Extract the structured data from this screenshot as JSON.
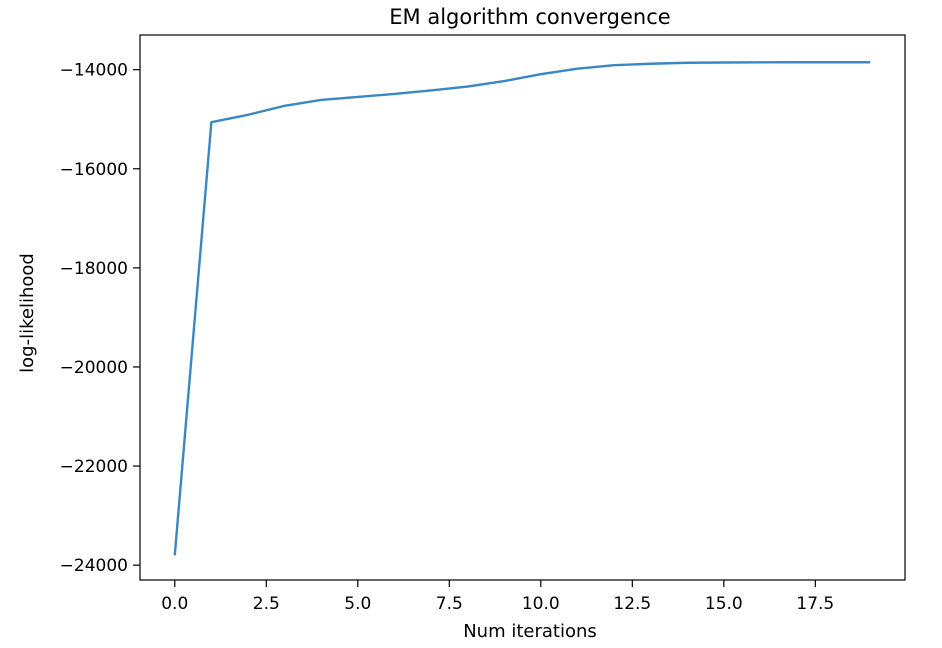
{
  "chart_data": {
    "type": "line",
    "title": "EM algorithm convergence",
    "xlabel": "Num iterations",
    "ylabel": "log-likelihood",
    "xlim": [
      -0.95,
      19.95
    ],
    "ylim": [
      -24300,
      -13300
    ],
    "x_ticks": [
      0.0,
      2.5,
      5.0,
      7.5,
      10.0,
      12.5,
      15.0,
      17.5
    ],
    "x_tick_labels": [
      "0.0",
      "2.5",
      "5.0",
      "7.5",
      "10.0",
      "12.5",
      "15.0",
      "17.5"
    ],
    "y_ticks": [
      -24000,
      -22000,
      -20000,
      -18000,
      -16000,
      -14000
    ],
    "y_tick_labels": [
      "−24000",
      "−22000",
      "−20000",
      "−18000",
      "−16000",
      "−14000"
    ],
    "grid": false,
    "series": [
      {
        "color": "#3b87c2",
        "x": [
          0,
          1,
          2,
          3,
          4,
          5,
          6,
          7,
          8,
          9,
          10,
          11,
          12,
          13,
          14,
          15,
          16,
          17,
          18,
          19
        ],
        "values": [
          -23800,
          -15060,
          -14910,
          -14730,
          -14610,
          -14550,
          -14490,
          -14420,
          -14340,
          -14230,
          -14090,
          -13980,
          -13910,
          -13880,
          -13860,
          -13855,
          -13852,
          -13850,
          -13850,
          -13850
        ]
      }
    ]
  }
}
